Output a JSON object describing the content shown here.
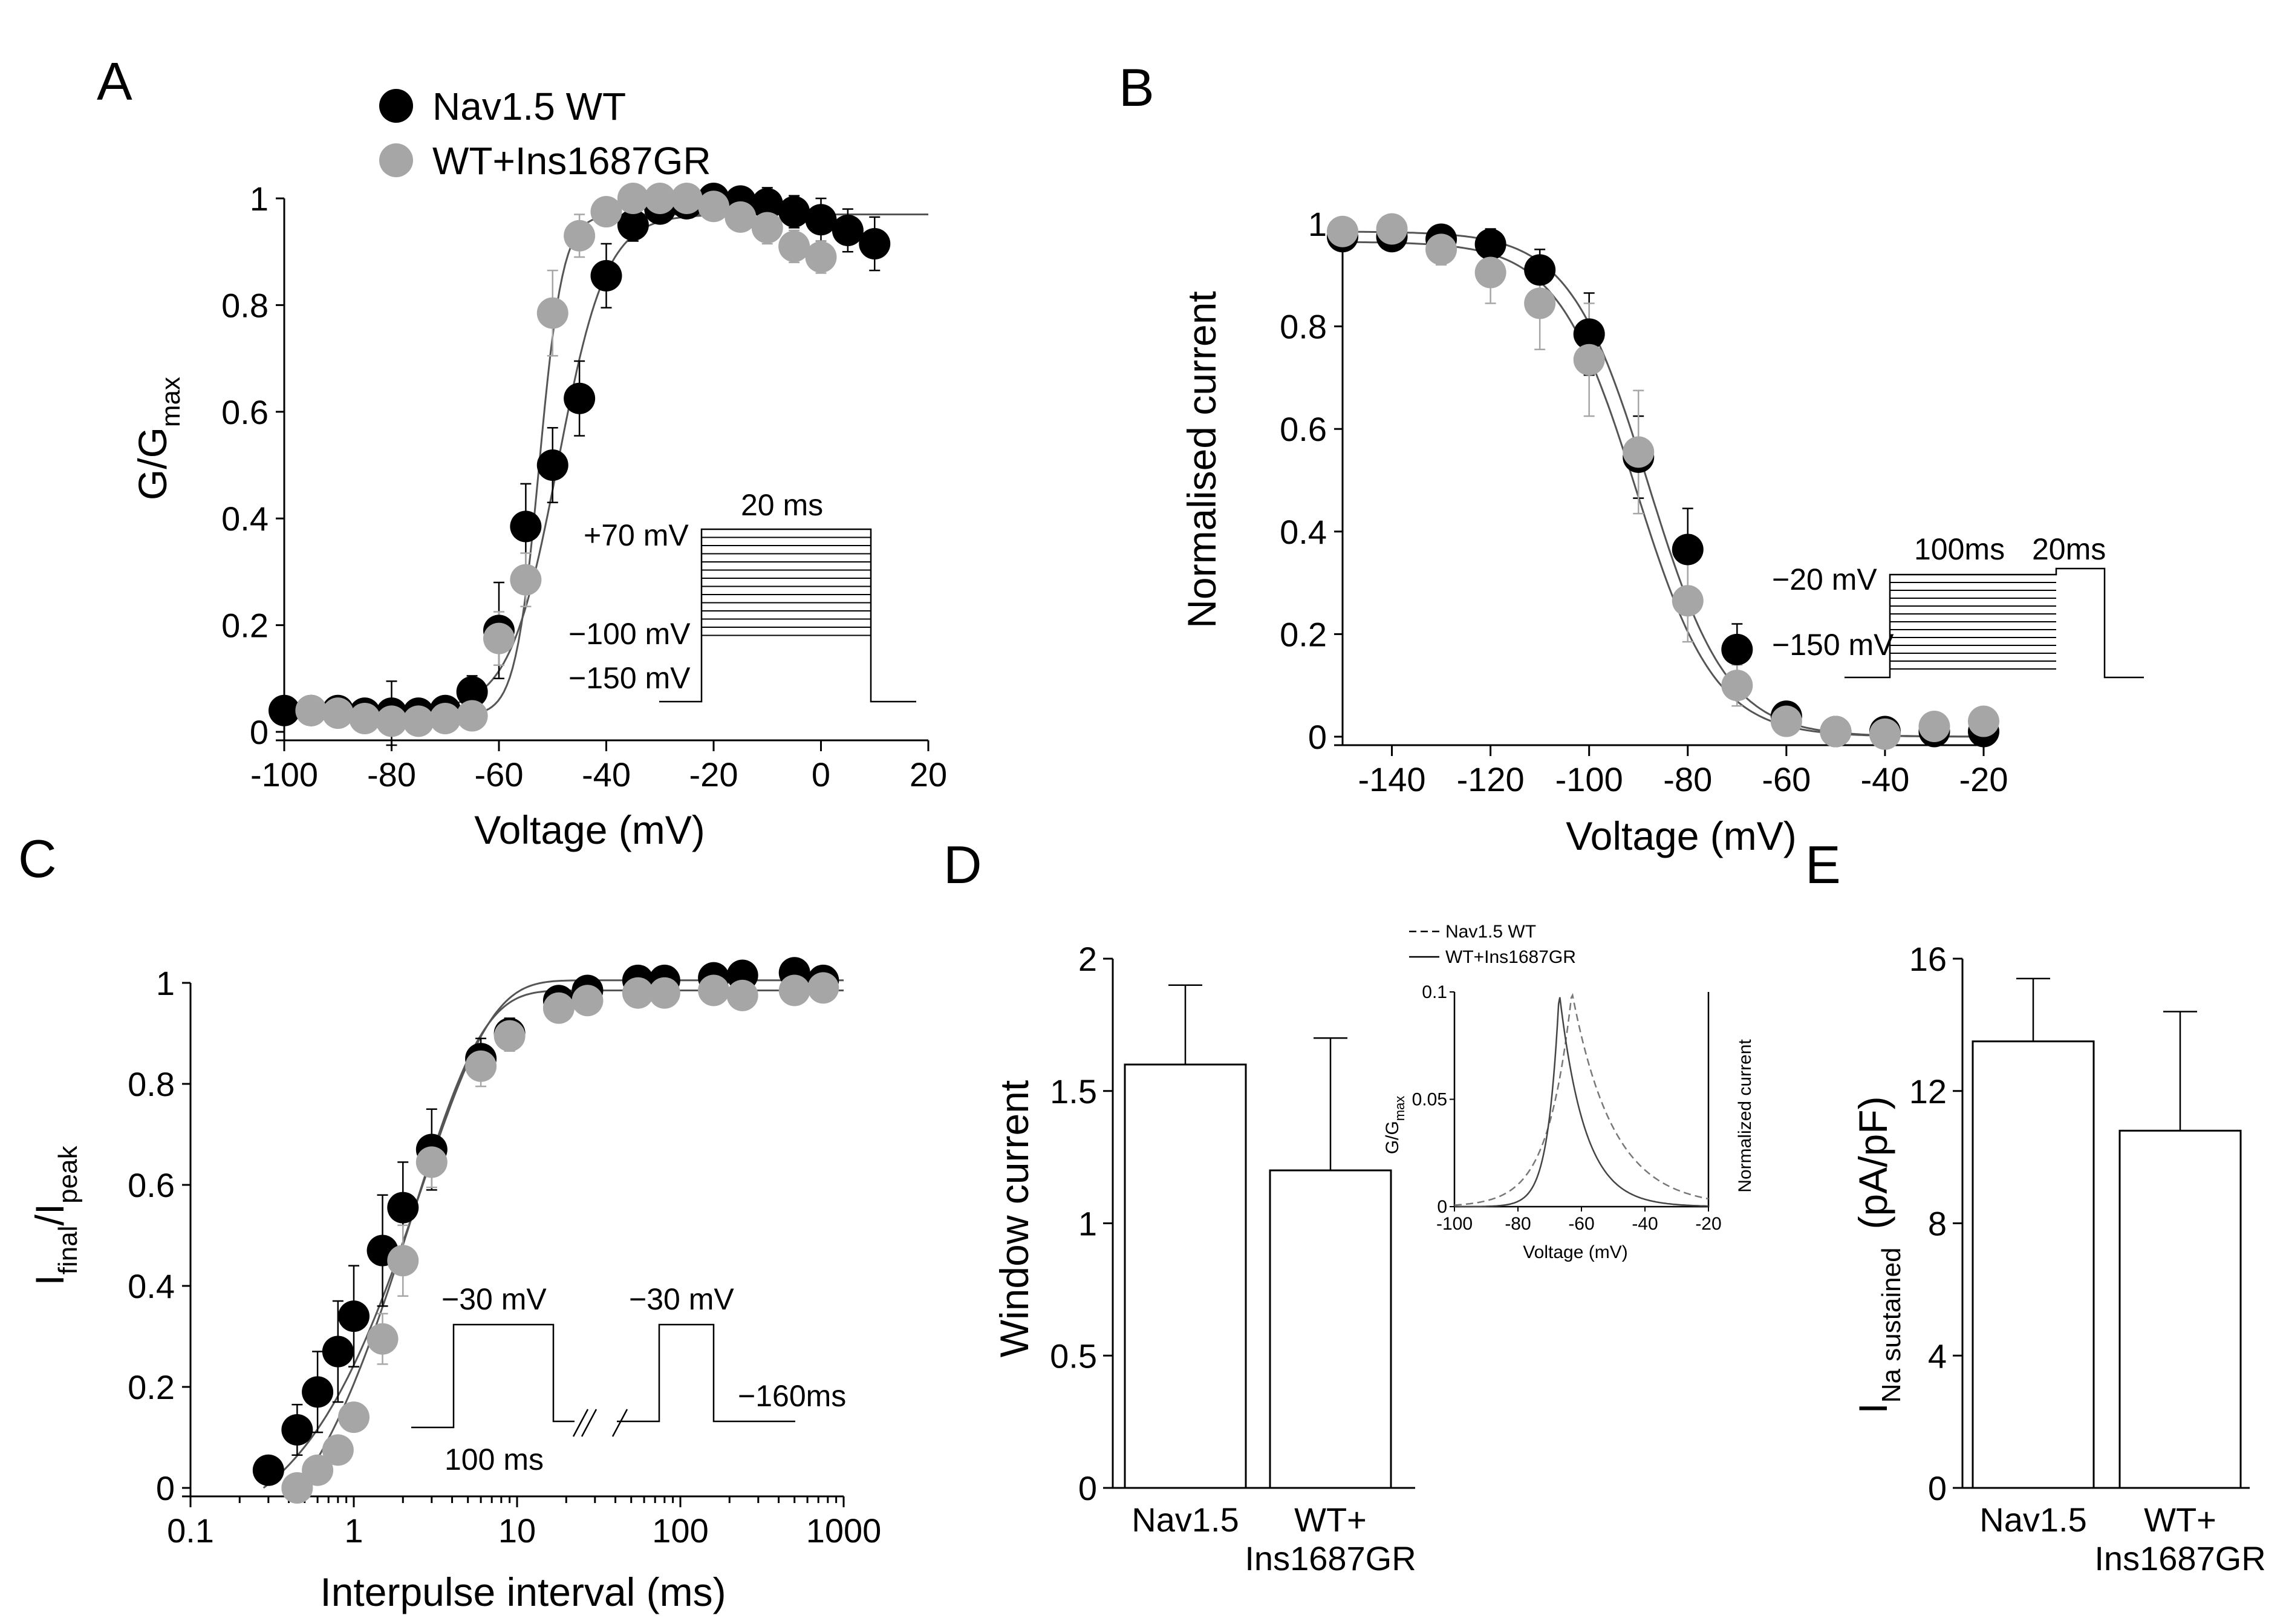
{
  "colors": {
    "wt": "#000000",
    "ins": "#a6a6a6",
    "fit": "#555555"
  },
  "panels": {
    "A": {
      "label": "A",
      "legend": [
        {
          "label": "Nav1.5 WT",
          "color": "#000000"
        },
        {
          "label": "WT+Ins1687GR",
          "color": "#a6a6a6"
        }
      ],
      "protocol": {
        "step_label": "20 ms",
        "top": "+70 mV",
        "mid": "−100 mV",
        "bottom": "−150 mV"
      }
    },
    "B": {
      "label": "B",
      "protocol": {
        "t1": "100ms",
        "t2": "20ms",
        "test": "−20 mV",
        "cond": "−150 mV"
      }
    },
    "C": {
      "label": "C",
      "protocol": {
        "p1": "−30 mV",
        "p2": "−30 mV",
        "dur": "100 ms",
        "hold": "−160ms"
      }
    },
    "D": {
      "label": "D",
      "inset": {
        "legend": [
          "Nav1.5 WT",
          "WT+Ins1687GR"
        ],
        "xlabel": "Voltage (mV)",
        "ylabel_main": "G/G",
        "ylabel_sub": "max",
        "y2label": "Normalized current",
        "xticks": [
          "-100",
          "-80",
          "-60",
          "-40",
          "-20"
        ],
        "yticks": [
          "0",
          "0.05",
          "0.1"
        ]
      }
    },
    "E": {
      "label": "E"
    }
  },
  "chart_data": [
    {
      "panel": "A",
      "type": "scatter",
      "title": "",
      "xlabel": "Voltage (mV)",
      "ylabel": "G/G",
      "ylabel_sub": "max",
      "xlim": [
        -100,
        20
      ],
      "ylim": [
        0,
        1
      ],
      "xticks": [
        -100,
        -80,
        -60,
        -40,
        -20,
        0,
        20
      ],
      "xtick_labels": [
        "-100",
        "-80",
        "-60",
        "-40",
        "-20",
        "0",
        "20"
      ],
      "yticks": [
        0,
        0.2,
        0.4,
        0.6,
        0.8,
        1
      ],
      "ytick_labels": [
        "0",
        "0.2",
        "0.4",
        "0.6",
        "0.8",
        "1"
      ],
      "series": [
        {
          "name": "Nav1.5 WT",
          "x": [
            -100,
            -95,
            -90,
            -85,
            -80,
            -75,
            -70,
            -65,
            -60,
            -55,
            -50,
            -45,
            -40,
            -35,
            -30,
            -25,
            -20,
            -15,
            -10,
            -5,
            0,
            5,
            10
          ],
          "y": [
            0.04,
            0.04,
            0.04,
            0.035,
            0.035,
            0.035,
            0.04,
            0.075,
            0.19,
            0.385,
            0.5,
            0.625,
            0.855,
            0.95,
            0.98,
            0.99,
            1.0,
            0.995,
            0.99,
            0.975,
            0.96,
            0.94,
            0.915
          ],
          "err": [
            0.02,
            0.02,
            0.02,
            0.02,
            0.06,
            0.02,
            0.02,
            0.03,
            0.09,
            0.08,
            0.07,
            0.07,
            0.06,
            0.03,
            0.02,
            0.02,
            0.02,
            0.02,
            0.03,
            0.03,
            0.04,
            0.04,
            0.05
          ]
        },
        {
          "name": "WT+Ins1687GR",
          "x": [
            -95,
            -90,
            -85,
            -80,
            -75,
            -70,
            -65,
            -60,
            -55,
            -50,
            -45,
            -40,
            -35,
            -30,
            -25,
            -20,
            -15,
            -10,
            -5,
            0
          ],
          "y": [
            0.04,
            0.035,
            0.025,
            0.02,
            0.02,
            0.025,
            0.03,
            0.175,
            0.285,
            0.785,
            0.93,
            0.975,
            1.0,
            1.0,
            1.0,
            0.985,
            0.965,
            0.945,
            0.91,
            0.89
          ],
          "err": [
            0.02,
            0.02,
            0.02,
            0.02,
            0.02,
            0.02,
            0.02,
            0.05,
            0.05,
            0.08,
            0.04,
            0.02,
            0.01,
            0.01,
            0.01,
            0.02,
            0.02,
            0.03,
            0.03,
            0.03
          ]
        }
      ],
      "fits": [
        {
          "name": "Nav1.5 WT",
          "vhalf": -49,
          "k": 4.5,
          "min": 0.04,
          "max": 0.97
        },
        {
          "name": "WT+Ins1687GR",
          "vhalf": -52.5,
          "k": 2.2,
          "min": 0.03,
          "max": 0.97
        }
      ]
    },
    {
      "panel": "B",
      "type": "scatter",
      "title": "",
      "xlabel": "Voltage (mV)",
      "ylabel": "Normalised current",
      "xlim": [
        -150,
        -20
      ],
      "ylim": [
        0,
        1
      ],
      "xticks": [
        -140,
        -120,
        -100,
        -80,
        -60,
        -40,
        -20
      ],
      "xtick_labels": [
        "-140",
        "-120",
        "-100",
        "-80",
        "-60",
        "-40",
        "-20"
      ],
      "yticks": [
        0,
        0.2,
        0.4,
        0.6,
        0.8,
        1
      ],
      "ytick_labels": [
        "0",
        "0.2",
        "0.4",
        "0.6",
        "0.8",
        "1"
      ],
      "series": [
        {
          "name": "Nav1.5 WT",
          "x": [
            -150,
            -140,
            -130,
            -120,
            -110,
            -100,
            -90,
            -80,
            -70,
            -60,
            -50,
            -40,
            -30,
            -20
          ],
          "y": [
            0.975,
            0.975,
            0.97,
            0.96,
            0.91,
            0.785,
            0.545,
            0.365,
            0.17,
            0.04,
            0.01,
            0.01,
            0.01,
            0.01
          ],
          "err": [
            0.02,
            0.02,
            0.02,
            0.03,
            0.04,
            0.08,
            0.08,
            0.08,
            0.05,
            0.02,
            0.01,
            0.01,
            0.01,
            0.01
          ]
        },
        {
          "name": "WT+Ins1687GR",
          "x": [
            -150,
            -140,
            -130,
            -120,
            -110,
            -100,
            -90,
            -80,
            -70,
            -60,
            -50,
            -40,
            -30,
            -20
          ],
          "y": [
            0.985,
            0.99,
            0.95,
            0.905,
            0.845,
            0.735,
            0.555,
            0.265,
            0.1,
            0.03,
            0.01,
            0.005,
            0.02,
            0.03
          ],
          "err": [
            0.02,
            0.02,
            0.03,
            0.06,
            0.09,
            0.11,
            0.12,
            0.08,
            0.04,
            0.02,
            0.01,
            0.01,
            0.01,
            0.01
          ]
        }
      ],
      "fits": [
        {
          "name": "Nav1.5 WT",
          "vhalf": -88,
          "k": 8.0,
          "min": 0.0,
          "max": 0.985
        },
        {
          "name": "WT+Ins1687GR",
          "vhalf": -90.5,
          "k": 8.0,
          "min": 0.0,
          "max": 0.965
        }
      ]
    },
    {
      "panel": "C",
      "type": "scatter",
      "title": "",
      "xlabel": "Interpulse interval (ms)",
      "ylabel": "I",
      "ylabel_sub1": "final",
      "ylabel_mid": "/I",
      "ylabel_sub2": "peak",
      "xscale": "log",
      "xlim": [
        0.1,
        1000
      ],
      "ylim": [
        0,
        1
      ],
      "xticks": [
        0.1,
        1,
        10,
        100,
        1000
      ],
      "xtick_labels": [
        "0.1",
        "1",
        "10",
        "100",
        "1000"
      ],
      "yticks": [
        0,
        0.2,
        0.4,
        0.6,
        0.8,
        1
      ],
      "ytick_labels": [
        "0",
        "0.2",
        "0.4",
        "0.6",
        "0.8",
        "1"
      ],
      "series": [
        {
          "name": "Nav1.5 WT",
          "x": [
            0.3,
            0.45,
            0.6,
            0.8,
            1.0,
            1.5,
            2,
            3,
            6,
            9,
            18,
            27,
            55,
            80,
            160,
            240,
            500,
            750
          ],
          "y": [
            0.035,
            0.115,
            0.19,
            0.27,
            0.34,
            0.47,
            0.555,
            0.67,
            0.85,
            0.9,
            0.965,
            0.985,
            1.005,
            1.005,
            1.01,
            1.015,
            1.02,
            1.005
          ],
          "err": [
            0.02,
            0.05,
            0.08,
            0.1,
            0.1,
            0.11,
            0.09,
            0.08,
            0.04,
            0.03,
            0.02,
            0.01,
            0.01,
            0.01,
            0.01,
            0.01,
            0.01,
            0.01
          ]
        },
        {
          "name": "WT+Ins1687GR",
          "x": [
            0.45,
            0.6,
            0.8,
            1.0,
            1.5,
            2,
            3,
            6,
            9,
            18,
            27,
            55,
            80,
            160,
            240,
            500,
            750
          ],
          "y": [
            0.0,
            0.035,
            0.075,
            0.14,
            0.295,
            0.45,
            0.645,
            0.835,
            0.895,
            0.95,
            0.965,
            0.98,
            0.98,
            0.985,
            0.975,
            0.985,
            0.99
          ],
          "err": [
            0.01,
            0.02,
            0.02,
            0.02,
            0.05,
            0.07,
            0.05,
            0.04,
            0.03,
            0.02,
            0.01,
            0.01,
            0.01,
            0.01,
            0.01,
            0.01,
            0.01
          ]
        }
      ],
      "fits": [
        {
          "name": "Nav1.5 WT",
          "x0": 0.28,
          "tau": 2.6,
          "max": 1.005
        },
        {
          "name": "WT+Ins1687GR",
          "x0": 0.46,
          "tau": 2.3,
          "max": 0.985
        }
      ]
    },
    {
      "panel": "D",
      "type": "bar",
      "title": "",
      "xlabel": "",
      "ylabel": "Window current",
      "categories": [
        "Nav1.5",
        "WT+\nIns1687GR"
      ],
      "values": [
        1.6,
        1.2
      ],
      "err": [
        0.3,
        0.5
      ],
      "ylim": [
        0,
        2
      ],
      "yticks": [
        0,
        0.5,
        1,
        1.5,
        2
      ],
      "ytick_labels": [
        "0",
        "0.5",
        "1",
        "1.5",
        "2"
      ]
    },
    {
      "panel": "D-inset",
      "type": "line",
      "title": "",
      "xlabel": "Voltage (mV)",
      "ylabel": "G/G max",
      "xlim": [
        -100,
        -20
      ],
      "ylim": [
        0,
        0.1
      ],
      "series": [
        {
          "name": "Nav1.5 WT",
          "style": "dashed",
          "peak_x": -63,
          "peak_y": 0.1
        },
        {
          "name": "WT+Ins1687GR",
          "style": "solid",
          "peak_x": -67,
          "peak_y": 0.1
        }
      ]
    },
    {
      "panel": "E",
      "type": "bar",
      "title": "",
      "xlabel": "",
      "ylabel": "I",
      "ylabel_sub": "Na sustained",
      "ylabel_unit": "(pA/pF)",
      "categories": [
        "Nav1.5",
        "WT+\nIns1687GR"
      ],
      "values": [
        13.5,
        10.8
      ],
      "err": [
        1.9,
        3.6
      ],
      "ylim": [
        0,
        16
      ],
      "yticks": [
        0,
        4,
        8,
        12,
        16
      ],
      "ytick_labels": [
        "0",
        "4",
        "8",
        "12",
        "16"
      ]
    }
  ]
}
